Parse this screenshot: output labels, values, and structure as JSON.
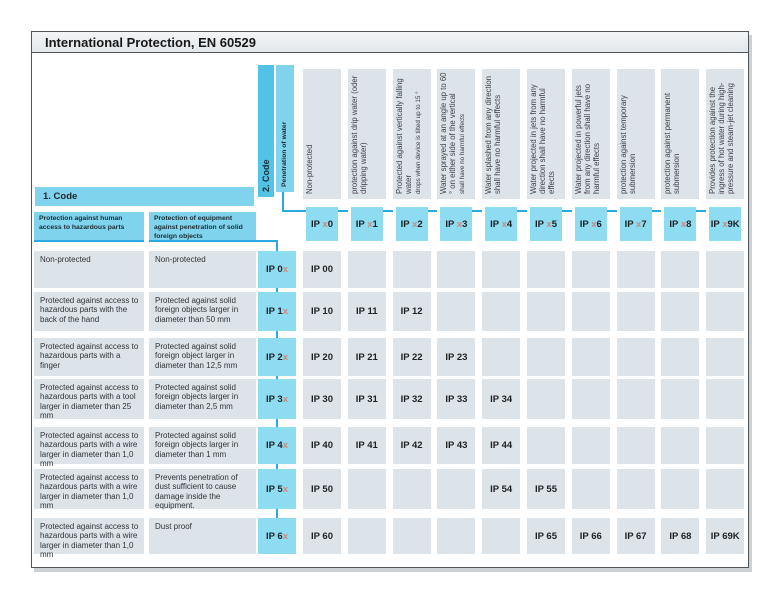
{
  "title": "International Protection, EN 60529",
  "legend": {
    "code1_label": "1. Code",
    "code2_label": "2. Code",
    "water_label": "Penetration of water",
    "human_header": "Protection against human access to hazardous parts",
    "objects_header": "Protection of equipment against penetration of solid foreign objects"
  },
  "colors": {
    "accent_line": "#29a9e0",
    "cyan_band": "#7fd3ec",
    "cyan_cell": "#8edcf2",
    "code2_band": "#53c3e5",
    "gray_cell": "#dce4e9",
    "x_letter": "#c9897f",
    "frame_border": "#50555a"
  },
  "water_columns": [
    {
      "code_pre": "IP ",
      "code_var": "x",
      "code_suf": "0",
      "description": "Non-protected",
      "note": ""
    },
    {
      "code_pre": "IP ",
      "code_var": "x",
      "code_suf": "1",
      "description": "protection against drip water (oder dripping water)",
      "note": ""
    },
    {
      "code_pre": "IP ",
      "code_var": "x",
      "code_suf": "2",
      "description": "Protected against vertically falling water",
      "note": "drops when device is tilted up to 15 °"
    },
    {
      "code_pre": "IP ",
      "code_var": "x",
      "code_suf": "3",
      "description": "Water  sprayed at an angle up to 60 ° on either side of the vertical",
      "note": "shall have no harmful effects"
    },
    {
      "code_pre": "IP ",
      "code_var": "x",
      "code_suf": "4",
      "description": "Water splashed from any direction shall have no harmful effects",
      "note": ""
    },
    {
      "code_pre": "IP ",
      "code_var": "x",
      "code_suf": "5",
      "description": "Water projected in jets from any direction shall have no harmful effects",
      "note": ""
    },
    {
      "code_pre": "IP ",
      "code_var": "x",
      "code_suf": "6",
      "description": "Water projected in powerful jets from any direction shall have no harmful effects",
      "note": ""
    },
    {
      "code_pre": "IP ",
      "code_var": "x",
      "code_suf": "7",
      "description": "protection against temporary submersion",
      "note": ""
    },
    {
      "code_pre": "IP ",
      "code_var": "x",
      "code_suf": "8",
      "description": "protection against permanent submersion",
      "note": ""
    },
    {
      "code_pre": "IP ",
      "code_var": "x",
      "code_suf": "9K",
      "description": "Provides protection against the ingress of hot water during high-pressure and steam-jet cleaning",
      "note": ""
    }
  ],
  "rows": [
    {
      "human": "Non-protected",
      "objects": "Non-protected",
      "code_pre": "IP 0",
      "code_var": "x",
      "cells": [
        "IP 00",
        "",
        "",
        "",
        "",
        "",
        "",
        "",
        "",
        ""
      ]
    },
    {
      "human": "Protected against access to hazardous parts with the back of the hand",
      "objects": "Protected against solid foreign objects larger in diameter than 50 mm",
      "code_pre": "IP 1",
      "code_var": "x",
      "cells": [
        "IP 10",
        "IP 11",
        "IP 12",
        "",
        "",
        "",
        "",
        "",
        "",
        ""
      ]
    },
    {
      "human": "Protected against access to hazardous parts with a finger",
      "objects": "Protected against solid foreign object larger in diameter than 12,5 mm",
      "code_pre": "IP 2",
      "code_var": "x",
      "cells": [
        "IP 20",
        "IP 21",
        "IP 22",
        "IP 23",
        "",
        "",
        "",
        "",
        "",
        ""
      ]
    },
    {
      "human": "Protected against access to hazardous parts with a tool larger in diameter than 25 mm",
      "objects": "Protected against solid foreign objects larger in diameter than 2,5 mm",
      "code_pre": "IP 3",
      "code_var": "x",
      "cells": [
        "IP 30",
        "IP 31",
        "IP 32",
        "IP 33",
        "IP 34",
        "",
        "",
        "",
        "",
        ""
      ]
    },
    {
      "human": "Protected against access to hazardous parts with a wire larger in diameter than 1,0 mm",
      "objects": "Protected against solid foreign objects larger in diameter than 1 mm",
      "code_pre": "IP 4",
      "code_var": "x",
      "cells": [
        "IP 40",
        "IP 41",
        "IP 42",
        "IP 43",
        "IP 44",
        "",
        "",
        "",
        "",
        ""
      ]
    },
    {
      "human": "Protected against access to hazardous parts with a wire larger in diameter than 1,0 mm",
      "objects": "Prevents penetration of dust sufficient to cause damage inside the equipment.",
      "code_pre": "IP 5",
      "code_var": "x",
      "cells": [
        "IP 50",
        "",
        "",
        "",
        "IP 54",
        "IP 55",
        "",
        "",
        "",
        ""
      ]
    },
    {
      "human": "Protected against access to hazardous parts with a wire larger in diameter than 1,0 mm",
      "objects": "Dust proof",
      "code_pre": "IP 6",
      "code_var": "x",
      "cells": [
        "IP 60",
        "",
        "",
        "",
        "",
        "IP 65",
        "IP 66",
        "IP 67",
        "IP 68",
        "IP 69K"
      ]
    }
  ]
}
